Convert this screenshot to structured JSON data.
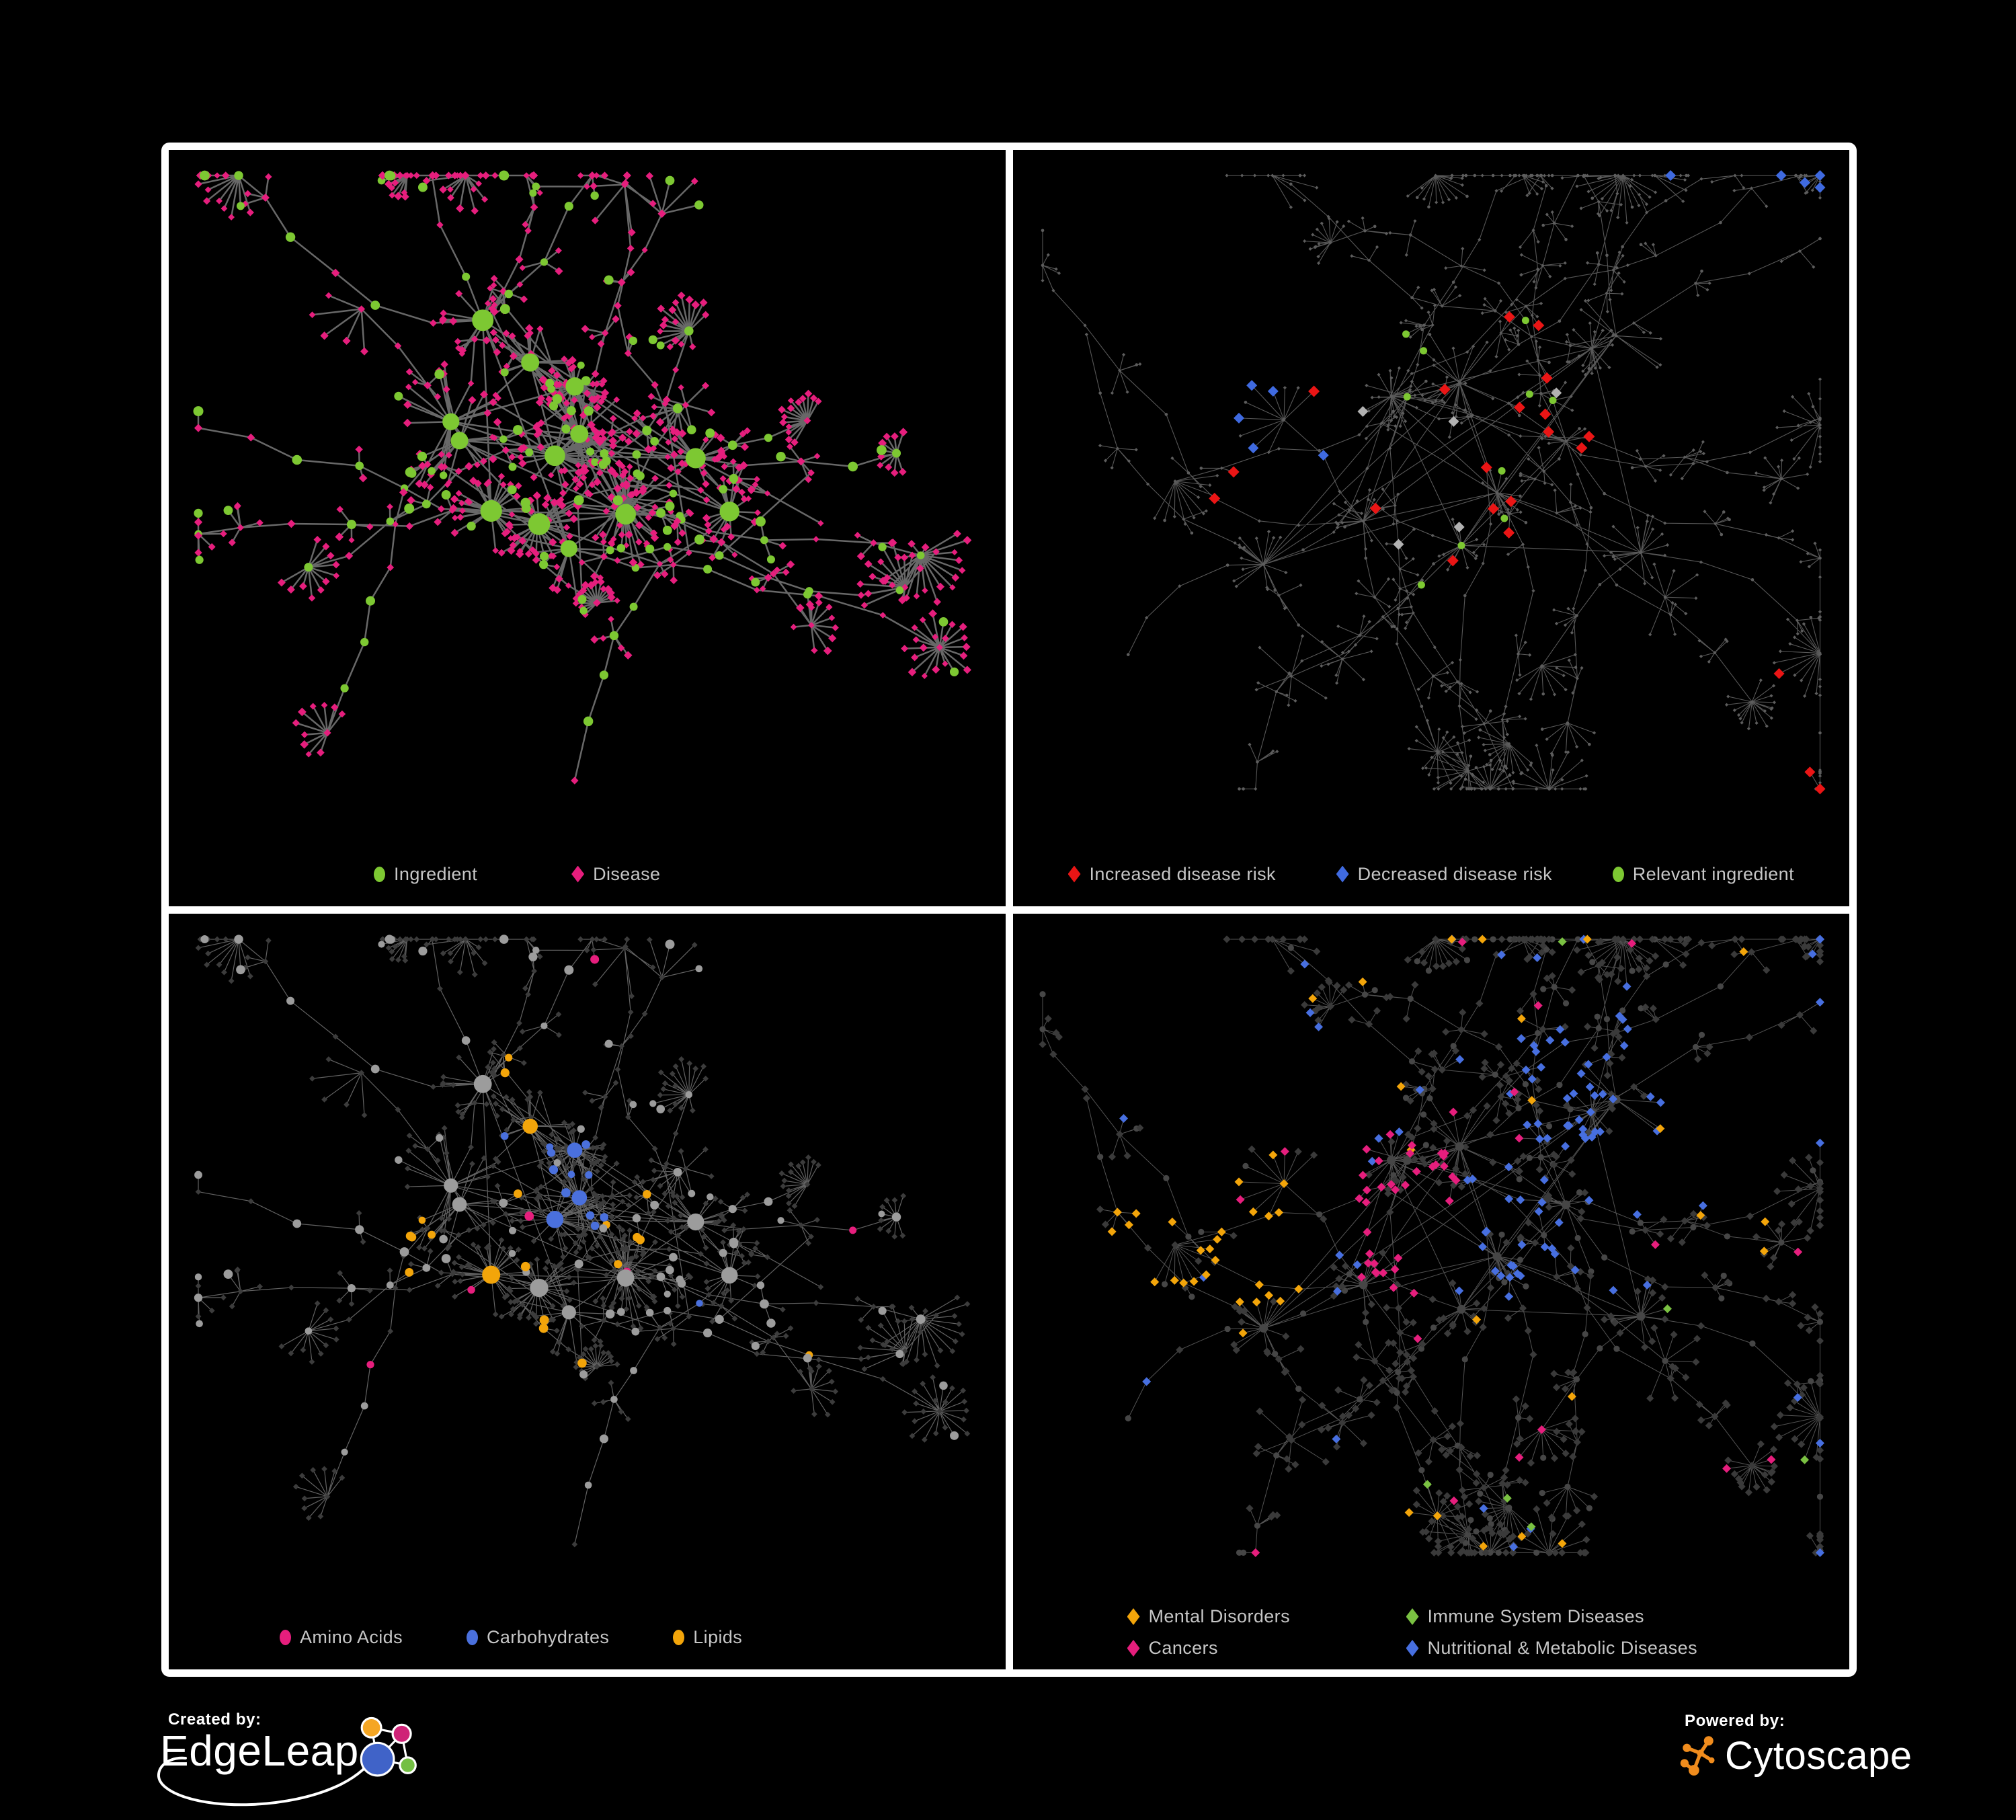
{
  "page": {
    "background": "#000000",
    "frame_color": "#ffffff",
    "legend_text_color": "#c6c6c6"
  },
  "panels": [
    {
      "name": "ingredient-disease-network",
      "legend": [
        {
          "label": "Ingredient",
          "shape": "circle",
          "color": "#7dc832"
        },
        {
          "label": "Disease",
          "shape": "diamond",
          "color": "#e61e7d"
        }
      ]
    },
    {
      "name": "disease-risk-network",
      "legend": [
        {
          "label": "Increased disease risk",
          "shape": "diamond",
          "color": "#ea1515"
        },
        {
          "label": "Decreased disease risk",
          "shape": "diamond",
          "color": "#3f6ae0"
        },
        {
          "label": "Relevant ingredient",
          "shape": "circle",
          "color": "#7dc832"
        }
      ]
    },
    {
      "name": "nutrient-class-network",
      "legend": [
        {
          "label": "Amino Acids",
          "shape": "circle",
          "color": "#e61e7d"
        },
        {
          "label": "Carbohydrates",
          "shape": "circle",
          "color": "#4a70dd"
        },
        {
          "label": "Lipids",
          "shape": "circle",
          "color": "#f3a50a"
        }
      ]
    },
    {
      "name": "disease-category-network",
      "legend": [
        {
          "label": "Mental Disorders",
          "shape": "diamond",
          "color": "#f3a50a"
        },
        {
          "label": "Immune System Diseases",
          "shape": "diamond",
          "color": "#7ac142"
        },
        {
          "label": "Cancers",
          "shape": "diamond",
          "color": "#e61e7d"
        },
        {
          "label": "Nutritional & Metabolic Diseases",
          "shape": "diamond",
          "color": "#476fe0"
        }
      ]
    }
  ],
  "branding": {
    "created_by_label": "Created by:",
    "created_by_brand": "EdgeLeap",
    "powered_by_label": "Powered by:",
    "powered_by_brand": "Cytoscape",
    "edgeleap_colors": {
      "blue": "#4063c8",
      "orange": "#f5a623",
      "magenta": "#cf2377",
      "green": "#74bf44"
    },
    "cytoscape_color": "#f08c1d"
  },
  "network": {
    "layouts": [
      {
        "seed": 7,
        "variant": "dense"
      },
      {
        "seed": 23,
        "variant": "sparse"
      }
    ],
    "panel_styles": [
      {
        "layout": 0,
        "edge_color": "#6e6e6e",
        "edge_width": 2.5,
        "edge_opacity": 0.95
      },
      {
        "layout": 1,
        "edge_color": "#5c5c5c",
        "edge_width": 1.1,
        "edge_opacity": 0.95
      },
      {
        "layout": 0,
        "edge_color": "#969696",
        "edge_width": 1.2,
        "edge_opacity": 0.65
      },
      {
        "layout": 1,
        "edge_color": "#8a8a8a",
        "edge_width": 1.0,
        "edge_opacity": 0.6
      }
    ],
    "node_colors": {
      "ingredient_green": "#7dc832",
      "disease_pink": "#e61e7d",
      "risk_red": "#ea1515",
      "risk_blue": "#3f6ae0",
      "neutral_silver": "#b2b2b2",
      "amino_pink": "#e61e7d",
      "carb_blue": "#4a70dd",
      "lipid_amber": "#f3a50a",
      "mental_amber": "#f3a50a",
      "immune_green": "#7ac142",
      "cancer_pink": "#e61e7d",
      "metabolic_blue": "#476fe0",
      "dim_gray": "#9c9c9c",
      "dark_gray": "#3c3c3c",
      "dark_circle": "#464646",
      "tiny_gray": "#5d5d5d"
    }
  }
}
